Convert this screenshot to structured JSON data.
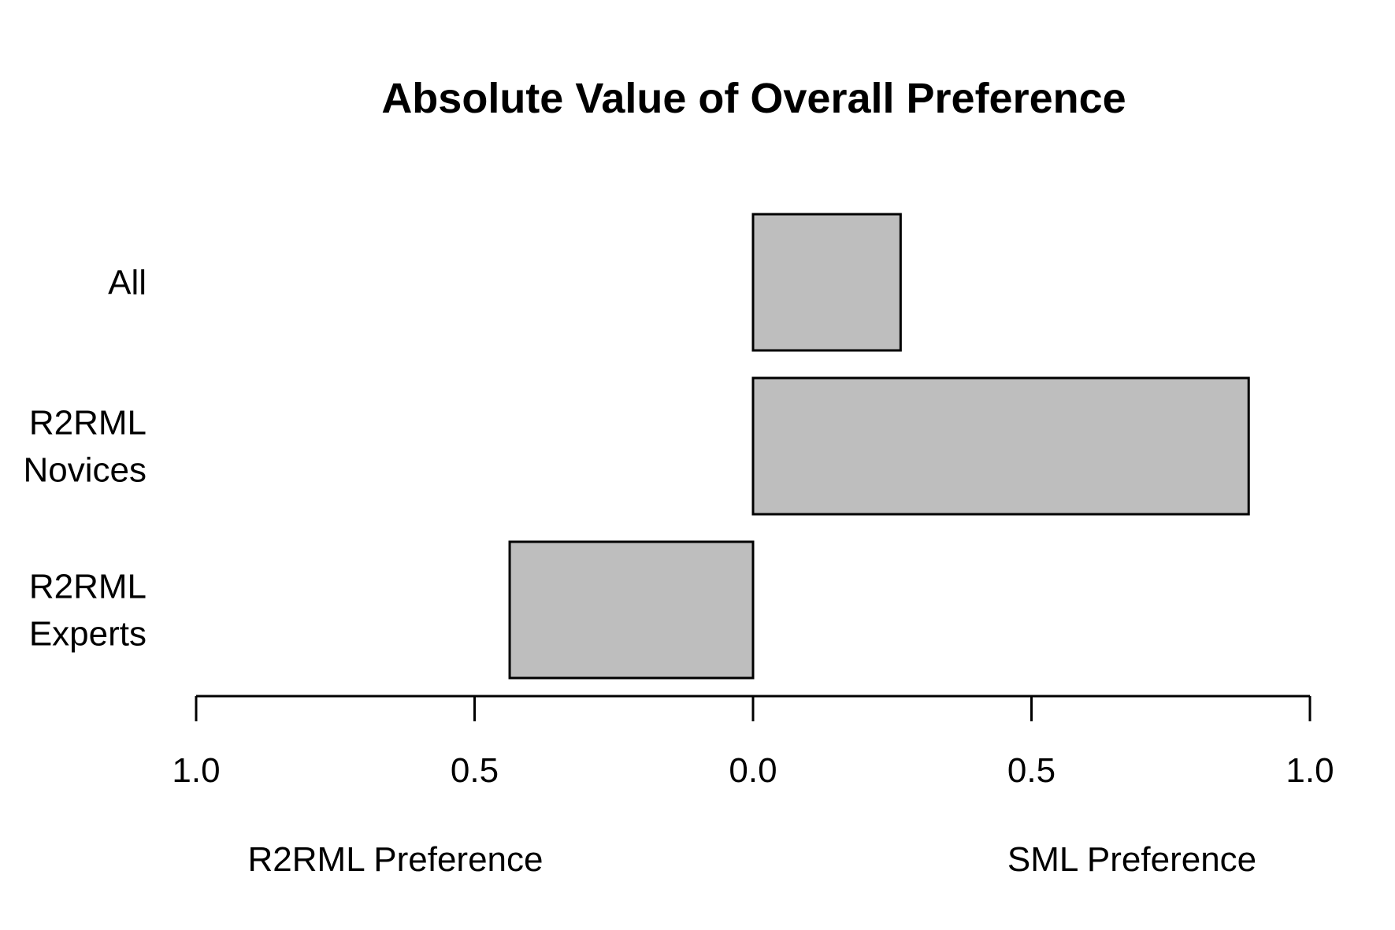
{
  "chart_data": {
    "type": "bar",
    "orientation": "horizontal",
    "title": "Absolute Value of Overall Preference",
    "categories": [
      [
        "All"
      ],
      [
        "R2RML",
        "Novices"
      ],
      [
        "R2RML",
        "Experts"
      ]
    ],
    "values": [
      0.265,
      0.89,
      -0.437
    ],
    "xlim": [
      -1.0,
      1.0
    ],
    "ticks": [
      -1.0,
      -0.5,
      0.0,
      0.5,
      1.0
    ],
    "tick_labels": [
      "1.0",
      "0.5",
      "0.0",
      "0.5",
      "1.0"
    ],
    "left_label": "R2RML Preference",
    "right_label": "SML Preference",
    "bar_color": "#bebebe",
    "grid": false
  }
}
